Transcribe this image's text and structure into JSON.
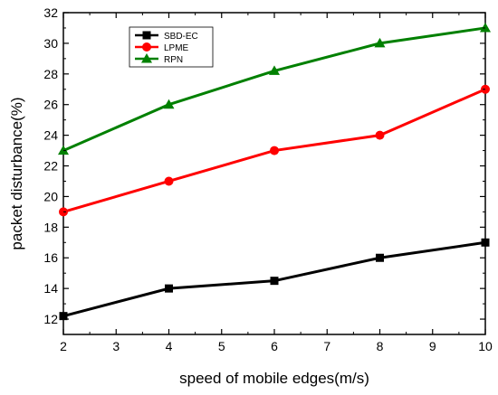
{
  "chart_data": {
    "type": "line",
    "title": "",
    "xlabel": "speed of mobile edges(m/s)",
    "ylabel": "packet disturbance(%)",
    "xlim": [
      2,
      10
    ],
    "ylim": [
      11,
      32
    ],
    "xticks": [
      2,
      3,
      4,
      5,
      6,
      7,
      8,
      9,
      10
    ],
    "yticks": [
      12,
      14,
      16,
      18,
      20,
      22,
      24,
      26,
      28,
      30,
      32
    ],
    "grid": false,
    "legend_position": "top-left",
    "x": [
      2,
      4,
      6,
      8,
      10
    ],
    "series": [
      {
        "name": "SBD-EC",
        "values": [
          12.2,
          14.0,
          14.5,
          16.0,
          17.0
        ],
        "color": "#000000",
        "marker": "square"
      },
      {
        "name": "LPME",
        "values": [
          19.0,
          21.0,
          23.0,
          24.0,
          27.0
        ],
        "color": "#ff0000",
        "marker": "circle"
      },
      {
        "name": "RPN",
        "values": [
          23.0,
          26.0,
          28.2,
          30.0,
          31.0
        ],
        "color": "#008000",
        "marker": "triangle"
      }
    ]
  }
}
